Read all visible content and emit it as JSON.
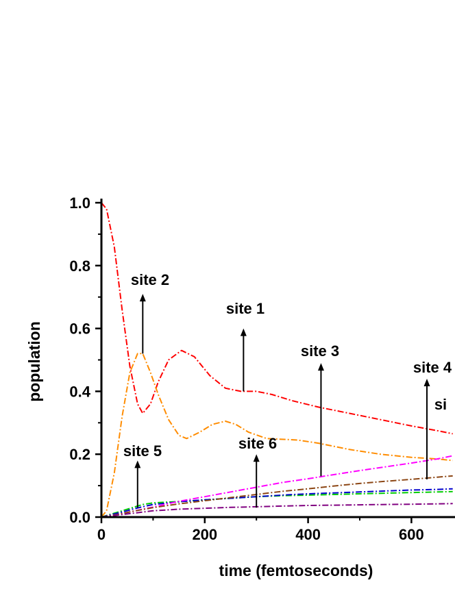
{
  "chart_data": {
    "type": "line",
    "xlabel": "time (femtoseconds)",
    "ylabel": "population",
    "xlim": [
      0,
      680
    ],
    "ylim": [
      0,
      1.0
    ],
    "x_ticks": [
      0,
      200,
      400,
      600
    ],
    "x_tick_labels": [
      "0",
      "200",
      "400",
      "600"
    ],
    "y_ticks": [
      0.0,
      0.2,
      0.4,
      0.6,
      0.8,
      1.0
    ],
    "y_tick_labels": [
      "0.0",
      "0.2",
      "0.4",
      "0.6",
      "0.8",
      "1.0"
    ],
    "grid": false,
    "series": [
      {
        "color": "#ff0000",
        "style": "dash-dot",
        "x": [
          0,
          10,
          25,
          40,
          55,
          70,
          80,
          95,
          110,
          130,
          155,
          180,
          210,
          240,
          270,
          300,
          330,
          370,
          420,
          480,
          540,
          600,
          650,
          680
        ],
        "y": [
          1.0,
          0.98,
          0.86,
          0.66,
          0.48,
          0.36,
          0.33,
          0.36,
          0.43,
          0.5,
          0.53,
          0.51,
          0.45,
          0.41,
          0.4,
          0.4,
          0.39,
          0.37,
          0.35,
          0.33,
          0.31,
          0.29,
          0.275,
          0.265
        ]
      },
      {
        "color": "#ff8c00",
        "style": "dash-dot",
        "x": [
          0,
          10,
          25,
          40,
          55,
          70,
          80,
          95,
          110,
          130,
          150,
          165,
          190,
          215,
          240,
          260,
          285,
          320,
          380,
          420,
          480,
          540,
          600,
          650,
          680
        ],
        "y": [
          0.0,
          0.02,
          0.14,
          0.32,
          0.46,
          0.52,
          0.52,
          0.46,
          0.39,
          0.31,
          0.26,
          0.25,
          0.27,
          0.295,
          0.305,
          0.295,
          0.27,
          0.25,
          0.245,
          0.235,
          0.215,
          0.2,
          0.19,
          0.185,
          0.18
        ]
      },
      {
        "color": "#00cc00",
        "style": "dash-dot",
        "x": [
          0,
          20,
          40,
          60,
          80,
          100,
          130,
          160,
          200,
          250,
          300,
          350,
          400,
          450,
          500,
          550,
          600,
          650,
          680
        ],
        "y": [
          0.0,
          0.01,
          0.02,
          0.03,
          0.04,
          0.045,
          0.048,
          0.05,
          0.055,
          0.06,
          0.065,
          0.068,
          0.07,
          0.072,
          0.074,
          0.076,
          0.078,
          0.08,
          0.081
        ]
      },
      {
        "color": "#0000cc",
        "style": "dash-dot",
        "x": [
          0,
          20,
          40,
          60,
          80,
          100,
          130,
          160,
          200,
          250,
          300,
          350,
          400,
          450,
          500,
          550,
          600,
          650,
          680
        ],
        "y": [
          0.0,
          0.008,
          0.016,
          0.025,
          0.033,
          0.04,
          0.045,
          0.05,
          0.055,
          0.06,
          0.065,
          0.07,
          0.074,
          0.077,
          0.08,
          0.083,
          0.086,
          0.088,
          0.09
        ]
      },
      {
        "color": "#ff00ff",
        "style": "dash-dot",
        "x": [
          0,
          30,
          60,
          100,
          150,
          200,
          250,
          300,
          350,
          400,
          450,
          500,
          550,
          600,
          650,
          680
        ],
        "y": [
          0.0,
          0.008,
          0.018,
          0.032,
          0.05,
          0.065,
          0.08,
          0.095,
          0.11,
          0.122,
          0.135,
          0.148,
          0.16,
          0.172,
          0.185,
          0.195
        ]
      },
      {
        "color": "#8b4513",
        "style": "dash-dot",
        "x": [
          0,
          30,
          60,
          100,
          150,
          200,
          250,
          300,
          350,
          400,
          450,
          500,
          550,
          600,
          650,
          680
        ],
        "y": [
          0.0,
          0.008,
          0.018,
          0.03,
          0.042,
          0.052,
          0.062,
          0.072,
          0.082,
          0.09,
          0.099,
          0.107,
          0.114,
          0.12,
          0.127,
          0.131
        ]
      },
      {
        "color": "#800080",
        "style": "dash-dot",
        "x": [
          0,
          30,
          60,
          100,
          150,
          200,
          250,
          300,
          350,
          400,
          450,
          500,
          550,
          600,
          650,
          680
        ],
        "y": [
          0.0,
          0.006,
          0.012,
          0.02,
          0.025,
          0.028,
          0.031,
          0.033,
          0.035,
          0.037,
          0.038,
          0.039,
          0.04,
          0.041,
          0.042,
          0.043
        ]
      }
    ],
    "annotations": [
      {
        "text": "site 2",
        "arrow_x": 80,
        "arrow_y0": 0.52,
        "arrow_y1": 0.71
      },
      {
        "text": "site 1",
        "arrow_x": 275,
        "arrow_y0": 0.4,
        "arrow_y1": 0.6
      },
      {
        "text": "site 3",
        "arrow_x": 425,
        "arrow_y0": 0.13,
        "arrow_y1": 0.49
      },
      {
        "text": "site 4",
        "arrow_x": 630,
        "arrow_y0": 0.12,
        "arrow_y1": 0.44
      },
      {
        "text": "si",
        "arrow_x": null,
        "arrow_y0": null,
        "arrow_y1": null
      },
      {
        "text": "site 5",
        "arrow_x": 70,
        "arrow_y0": 0.03,
        "arrow_y1": 0.18
      },
      {
        "text": "site 6",
        "arrow_x": 300,
        "arrow_y0": 0.03,
        "arrow_y1": 0.2
      }
    ]
  }
}
